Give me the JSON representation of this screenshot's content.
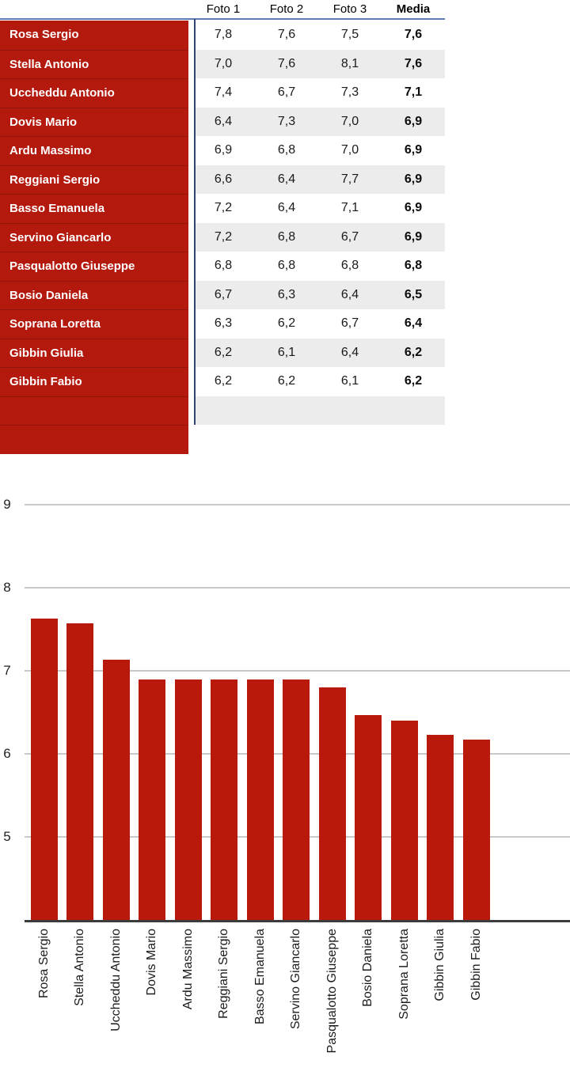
{
  "table": {
    "headers": [
      "Foto 1",
      "Foto 2",
      "Foto 3",
      "Media"
    ],
    "rows": [
      {
        "name": "Rosa Sergio",
        "scores": [
          "7,8",
          "7,6",
          "7,5"
        ],
        "media": "7,6"
      },
      {
        "name": "Stella Antonio",
        "scores": [
          "7,0",
          "7,6",
          "8,1"
        ],
        "media": "7,6"
      },
      {
        "name": "Uccheddu Antonio",
        "scores": [
          "7,4",
          "6,7",
          "7,3"
        ],
        "media": "7,1"
      },
      {
        "name": "Dovis Mario",
        "scores": [
          "6,4",
          "7,3",
          "7,0"
        ],
        "media": "6,9"
      },
      {
        "name": "Ardu Massimo",
        "scores": [
          "6,9",
          "6,8",
          "7,0"
        ],
        "media": "6,9"
      },
      {
        "name": "Reggiani Sergio",
        "scores": [
          "6,6",
          "6,4",
          "7,7"
        ],
        "media": "6,9"
      },
      {
        "name": "Basso Emanuela",
        "scores": [
          "7,2",
          "6,4",
          "7,1"
        ],
        "media": "6,9"
      },
      {
        "name": "Servino Giancarlo",
        "scores": [
          "7,2",
          "6,8",
          "6,7"
        ],
        "media": "6,9"
      },
      {
        "name": "Pasqualotto Giuseppe",
        "scores": [
          "6,8",
          "6,8",
          "6,8"
        ],
        "media": "6,8"
      },
      {
        "name": "Bosio Daniela",
        "scores": [
          "6,7",
          "6,3",
          "6,4"
        ],
        "media": "6,5"
      },
      {
        "name": "Soprana Loretta",
        "scores": [
          "6,3",
          "6,2",
          "6,7"
        ],
        "media": "6,4"
      },
      {
        "name": "Gibbin Giulia",
        "scores": [
          "6,2",
          "6,1",
          "6,4"
        ],
        "media": "6,2"
      },
      {
        "name": "Gibbin Fabio",
        "scores": [
          "6,2",
          "6,2",
          "6,1"
        ],
        "media": "6,2"
      }
    ],
    "trailing_empty_rows": 2
  },
  "chart_data": {
    "type": "bar",
    "title": "",
    "xlabel": "",
    "ylabel": "",
    "categories": [
      "Rosa Sergio",
      "Stella Antonio",
      "Uccheddu Antonio",
      "Dovis Mario",
      "Ardu Massimo",
      "Reggiani Sergio",
      "Basso Emanuela",
      "Servino Giancarlo",
      "Pasqualotto Giuseppe",
      "Bosio Daniela",
      "Soprana Loretta",
      "Gibbin Giulia",
      "Gibbin Fabio"
    ],
    "values": [
      7.63,
      7.57,
      7.13,
      6.9,
      6.9,
      6.9,
      6.9,
      6.9,
      6.8,
      6.47,
      6.4,
      6.23,
      6.17
    ],
    "ylim": [
      4,
      9
    ],
    "yticks": [
      5,
      6,
      7,
      8,
      9
    ],
    "grid": true,
    "legend": "none",
    "bar_color": "#b8190b"
  },
  "colors": {
    "table_red": "#b4190e",
    "bar_red": "#b8190b",
    "stripe_gray": "#ececec",
    "top_border_blue": "#5b7db1",
    "vertical_border_blue": "#2f4470",
    "gridline_gray": "#c8c8c8",
    "axis_dark": "#3c3c3c"
  }
}
